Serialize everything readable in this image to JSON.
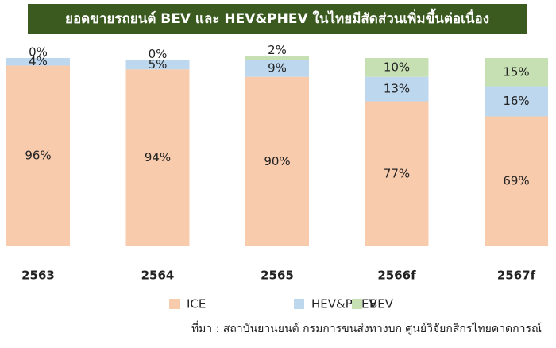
{
  "chart_data": {
    "type": "stacked_bar",
    "title": "ยอดขายรถยนต์ BEV และ HEV&PHEV ในไทยมีสัดส่วนเพิ่มขึ้นต่อเนื่อง",
    "categories": [
      "2563",
      "2564",
      "2565",
      "2566f",
      "2567f"
    ],
    "series": [
      {
        "name": "ICE",
        "color": "#f8cbad",
        "values": [
          96,
          94,
          90,
          77,
          69
        ],
        "value_labels": [
          "96%",
          "94%",
          "90%",
          "77%",
          "69%"
        ]
      },
      {
        "name": "HEV&PHEV",
        "color": "#bdd7ee",
        "values": [
          4,
          5,
          9,
          13,
          16
        ],
        "value_labels": [
          "4%",
          "5%",
          "9%",
          "13%",
          "16%"
        ]
      },
      {
        "name": "BEV",
        "color": "#c6e0b4",
        "values": [
          0,
          0,
          2,
          10,
          15
        ],
        "value_labels": [
          "0%",
          "0%",
          "2%",
          "10%",
          "15%"
        ]
      }
    ],
    "ylim": [
      0,
      100
    ],
    "source": "ที่มา : สถาบันยานยนต์ กรมการขนส่งทางบก ศูนย์วิจัยกสิกรไทยคาดการณ์"
  }
}
